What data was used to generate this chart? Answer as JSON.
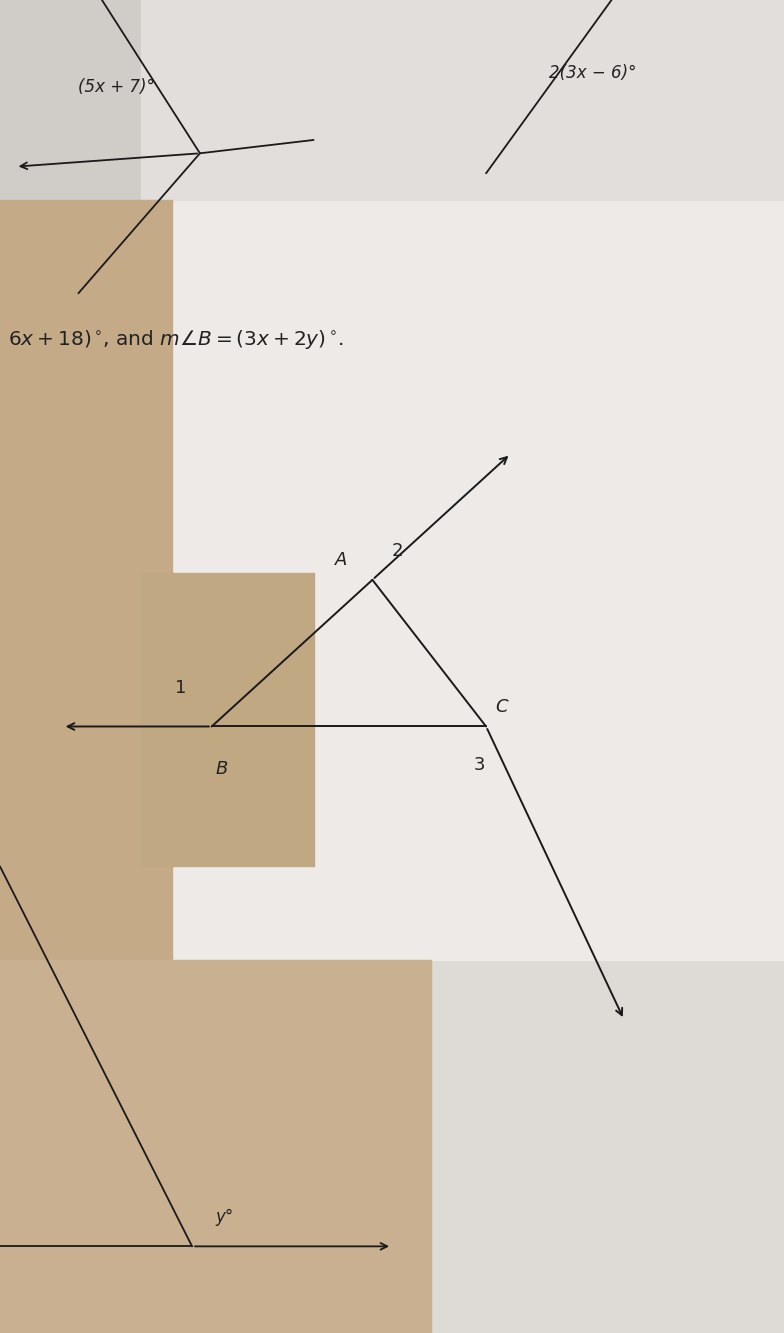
{
  "bg_light": "#e8e6e3",
  "bg_tan": "#c9b89a",
  "text_color": "#222222",
  "label_top_left": "(5x + 7)°",
  "label_top_right": "2(3x − 6)°",
  "text_line": "6x + 18)°, and m∠B = (3x + 2y)°.",
  "vertex_A": [
    0.475,
    0.565
  ],
  "vertex_B": [
    0.27,
    0.455
  ],
  "vertex_C": [
    0.62,
    0.455
  ],
  "label_A": "A",
  "label_B": "B",
  "label_C": "C",
  "label_1": "1",
  "label_2": "2",
  "label_3": "3",
  "label_y": "y°",
  "line_color": "#1a1a1a"
}
